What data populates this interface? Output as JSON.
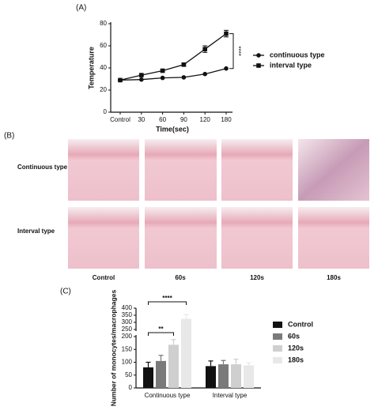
{
  "panels": {
    "a": "(A)",
    "b": "(B)",
    "c": "(C)"
  },
  "histology": {
    "rows": [
      "Continuous type",
      "Interval type"
    ],
    "columns": [
      "Control",
      "60s",
      "120s",
      "180s"
    ]
  },
  "chart_data": [
    {
      "type": "line",
      "xlabel": "Time(sec)",
      "ylabel": "Temperature",
      "categories": [
        "Control",
        "30",
        "60",
        "90",
        "120",
        "180"
      ],
      "ylim": [
        0,
        80
      ],
      "yticks": [
        0,
        20,
        40,
        60,
        80
      ],
      "annotations": [
        "****"
      ],
      "series": [
        {
          "name": "continuous type",
          "color": "#111111",
          "marker": "circle",
          "values": [
            29,
            29.5,
            31,
            31.5,
            34.5,
            39.5
          ]
        },
        {
          "name": "interval type",
          "color": "#111111",
          "marker": "square",
          "values": [
            29,
            33.5,
            37.5,
            43,
            57,
            71
          ],
          "errors": [
            0.5,
            0.5,
            1,
            1,
            3,
            3
          ]
        }
      ]
    },
    {
      "type": "bar",
      "ylabel": "Number of monocytes/macrophages",
      "categories": [
        "Continuous type",
        "Interval type"
      ],
      "ylim": [
        0,
        400
      ],
      "y_break": [
        200,
        250
      ],
      "yticks": [
        0,
        50,
        100,
        150,
        200,
        250,
        300,
        350,
        400
      ],
      "annotations": [
        "**",
        "****"
      ],
      "series": [
        {
          "name": "Control",
          "color": "#111111",
          "values": [
            80,
            85
          ],
          "errors": [
            20,
            20
          ]
        },
        {
          "name": "60s",
          "color": "#7a7a7a",
          "values": [
            105,
            92
          ],
          "errors": [
            22,
            15
          ]
        },
        {
          "name": "120s",
          "color": "#cfcfcf",
          "values": [
            168,
            92
          ],
          "errors": [
            20,
            20
          ]
        },
        {
          "name": "180s",
          "color": "#e8e8e8",
          "values": [
            325,
            88
          ],
          "errors": [
            30,
            10
          ]
        }
      ]
    }
  ]
}
